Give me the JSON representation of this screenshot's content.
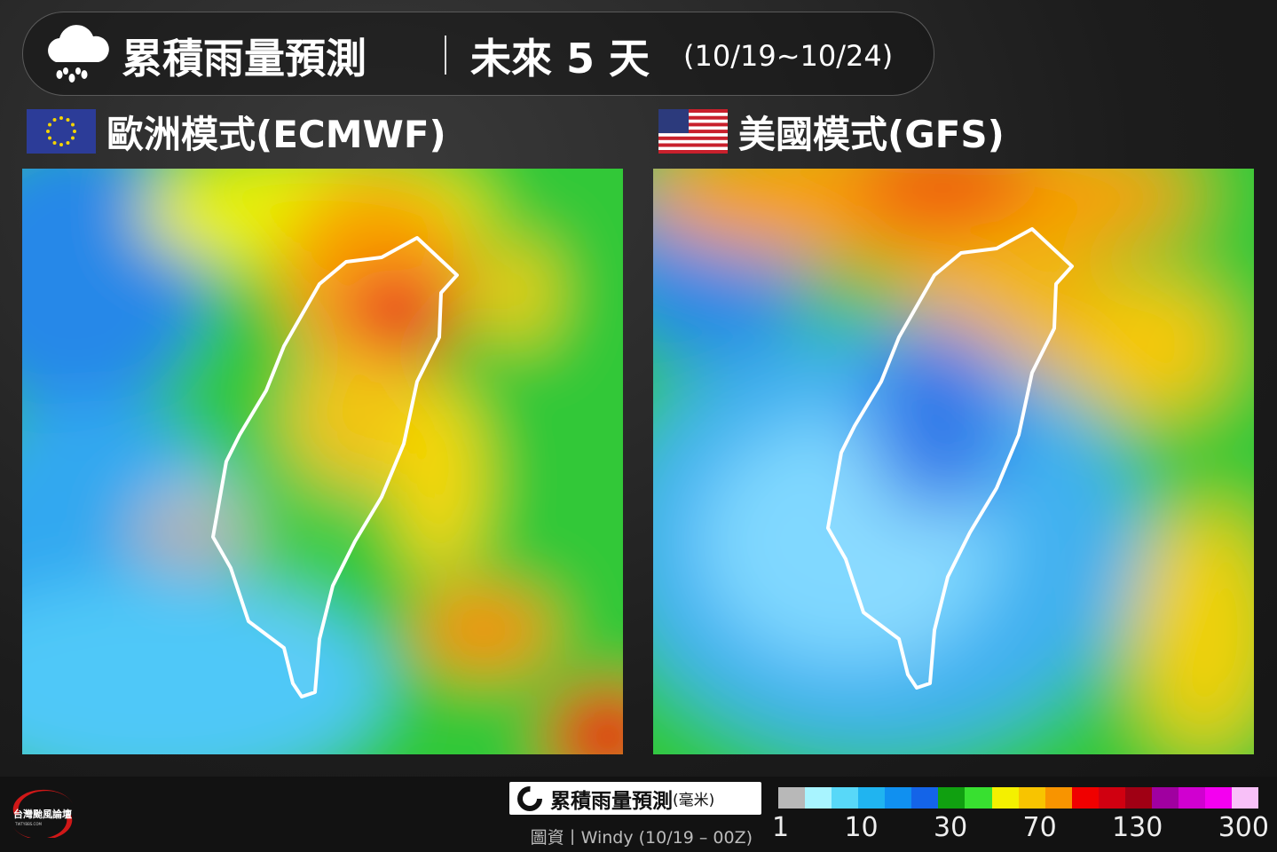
{
  "header": {
    "title": "累積雨量預測",
    "period": "未來 5 天",
    "dates": "(10/19~10/24)"
  },
  "panels": [
    {
      "title": "歐洲模式(ECMWF)"
    },
    {
      "title": "美國模式(GFS)"
    }
  ],
  "legend": {
    "title": "累積雨量預測",
    "unit": "(毫米)",
    "source": "圖資丨Windy (10/19 – 00Z)",
    "colors": [
      "#b8b8b8",
      "#a8f4ff",
      "#58d8f8",
      "#20b4f0",
      "#1090f0",
      "#1464e8",
      "#10a010",
      "#38e030",
      "#f4f000",
      "#f8c400",
      "#f89400",
      "#f00000",
      "#d00010",
      "#a00014",
      "#a000a0",
      "#d000d0",
      "#f400f0",
      "#f8c0f8"
    ],
    "ticks": [
      1,
      10,
      30,
      70,
      130,
      300
    ]
  },
  "logo": {
    "name": "台灣颱風論壇",
    "site": "TWTYBBS.COM"
  }
}
